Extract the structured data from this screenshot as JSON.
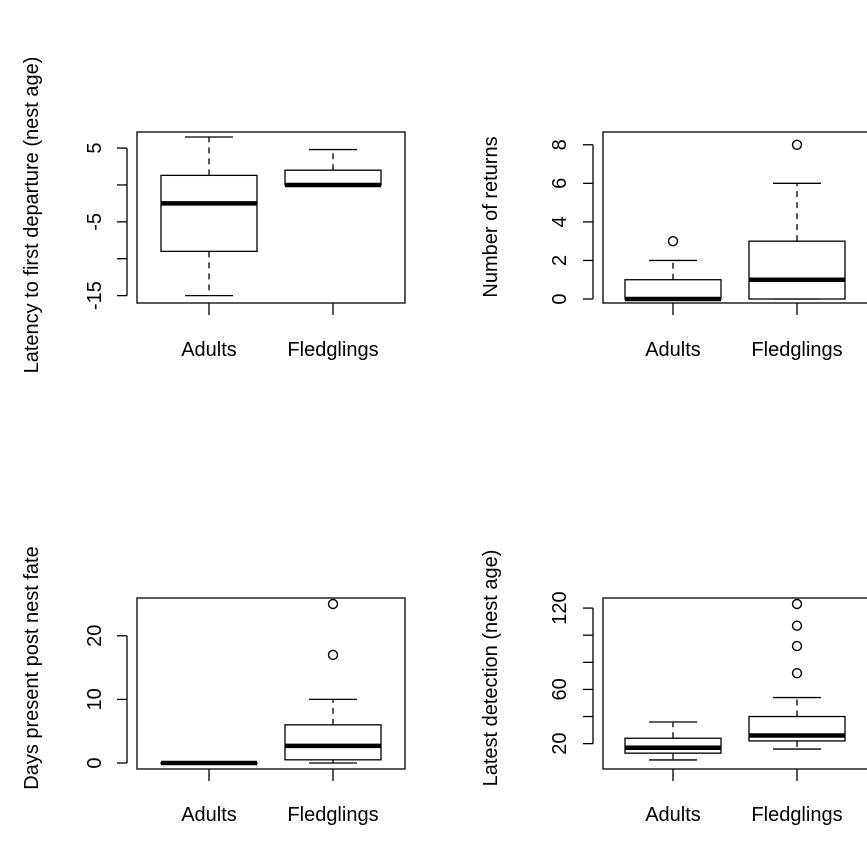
{
  "chart_data": [
    {
      "type": "boxplot",
      "panel": "top-left",
      "ylabel": "Latency to first departure (nest age)",
      "ylim": [
        -16,
        6.5
      ],
      "yticks": [
        -15,
        -10,
        -5,
        0,
        5
      ],
      "ytick_labels": [
        "-15",
        "",
        "-5",
        "",
        "5"
      ],
      "categories": [
        "Adults",
        "Fledglings"
      ],
      "boxes": [
        {
          "whisker_low": -15,
          "q1": -9,
          "median": -2.5,
          "q3": 1.3,
          "whisker_high": 6.5,
          "outliers": []
        },
        {
          "whisker_low": 0,
          "q1": 0,
          "median": 0,
          "q3": 2,
          "whisker_high": 4.8,
          "outliers": []
        }
      ]
    },
    {
      "type": "boxplot",
      "panel": "top-right",
      "ylabel": "Number of returns",
      "ylim": [
        0,
        8.3
      ],
      "yticks": [
        0,
        2,
        4,
        6,
        8
      ],
      "ytick_labels": [
        "0",
        "2",
        "4",
        "6",
        "8"
      ],
      "categories": [
        "Adults",
        "Fledglings"
      ],
      "boxes": [
        {
          "whisker_low": 0,
          "q1": 0,
          "median": 0,
          "q3": 1,
          "whisker_high": 2,
          "outliers": [
            3
          ]
        },
        {
          "whisker_low": 0,
          "q1": 0,
          "median": 1,
          "q3": 3,
          "whisker_high": 6,
          "outliers": [
            8
          ]
        }
      ]
    },
    {
      "type": "boxplot",
      "panel": "bottom-left",
      "ylabel": "Days present post nest fate",
      "ylim": [
        0,
        25
      ],
      "yticks": [
        0,
        10,
        20
      ],
      "ytick_labels": [
        "0",
        "10",
        "20"
      ],
      "categories": [
        "Adults",
        "Fledglings"
      ],
      "boxes": [
        {
          "whisker_low": 0,
          "q1": 0,
          "median": 0,
          "q3": 0,
          "whisker_high": 0,
          "outliers": []
        },
        {
          "whisker_low": 0,
          "q1": 0.5,
          "median": 2.7,
          "q3": 6,
          "whisker_high": 10,
          "outliers": [
            17,
            25
          ]
        }
      ]
    },
    {
      "type": "boxplot",
      "panel": "bottom-right",
      "ylabel": "Latest detection (nest age)",
      "ylim": [
        5,
        123
      ],
      "yticks": [
        20,
        40,
        60,
        80,
        100,
        120
      ],
      "ytick_labels": [
        "20",
        "",
        "60",
        "",
        "",
        "120"
      ],
      "categories": [
        "Adults",
        "Fledglings"
      ],
      "boxes": [
        {
          "whisker_low": 8,
          "q1": 13,
          "median": 17,
          "q3": 24,
          "whisker_high": 36,
          "outliers": []
        },
        {
          "whisker_low": 16,
          "q1": 22,
          "median": 26,
          "q3": 40,
          "whisker_high": 54,
          "outliers": [
            72,
            92,
            107,
            123
          ]
        }
      ]
    }
  ]
}
